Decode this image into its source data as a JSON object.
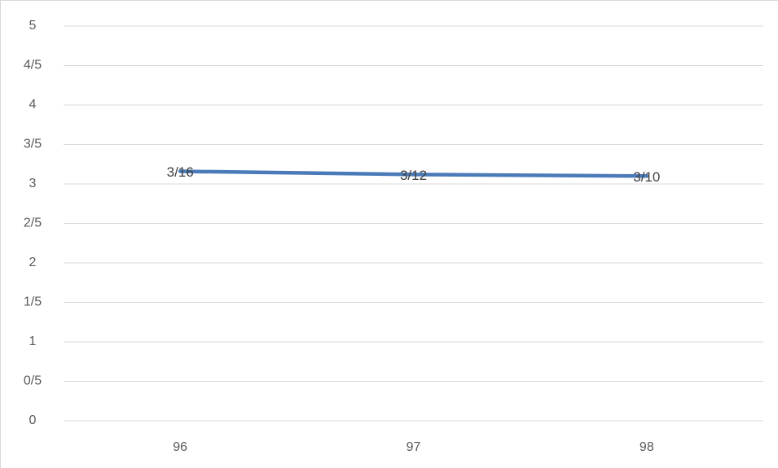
{
  "chart_data": {
    "type": "line",
    "categories": [
      "96",
      "97",
      "98"
    ],
    "series": [
      {
        "color": "#4a7ab8",
        "values": [
          3.16,
          3.12,
          3.1
        ],
        "value_labels": [
          "3/16",
          "3/12",
          "3/10"
        ]
      }
    ],
    "ylim": [
      0,
      5
    ],
    "yticks": [
      0,
      {
        "value": 0.5,
        "label": "0/5"
      },
      1,
      {
        "value": 1.5,
        "label": "1/5"
      },
      2,
      {
        "value": 2.5,
        "label": "2/5"
      },
      3,
      {
        "value": 3.5,
        "label": "3/5"
      },
      4,
      {
        "value": 4.5,
        "label": "4/5"
      },
      5
    ],
    "grid": true
  }
}
